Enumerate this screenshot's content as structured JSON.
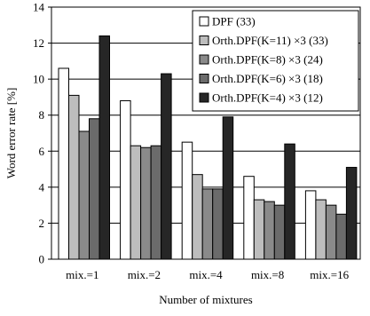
{
  "chart_data": {
    "type": "bar",
    "xlabel": "Number of mixtures",
    "ylabel": "Word error rate [%]",
    "ylim": [
      0,
      14
    ],
    "yticks": [
      0,
      2,
      4,
      6,
      8,
      10,
      12,
      14
    ],
    "grid": "horizontal",
    "legend_position": "top-right",
    "categories": [
      "mix.=1",
      "mix.=2",
      "mix.=4",
      "mix.=8",
      "mix.=16"
    ],
    "series": [
      {
        "name": "DPF (33)",
        "color": "#ffffff",
        "values": [
          10.6,
          8.8,
          6.5,
          4.6,
          3.8
        ]
      },
      {
        "name": "Orth.DPF(K=11) ×3 (33)",
        "color": "#bdbdbd",
        "values": [
          9.1,
          6.3,
          4.7,
          3.3,
          3.3
        ]
      },
      {
        "name": "Orth.DPF(K=8) ×3 (24)",
        "color": "#8a8a8a",
        "values": [
          7.1,
          6.2,
          3.9,
          3.2,
          3.0
        ]
      },
      {
        "name": "Orth.DPF(K=6) ×3 (18)",
        "color": "#6b6b6b",
        "values": [
          7.8,
          6.3,
          3.9,
          3.0,
          2.5
        ]
      },
      {
        "name": "Orth.DPF(K=4) ×3 (12)",
        "color": "#262626",
        "values": [
          12.4,
          10.3,
          7.9,
          6.4,
          5.1
        ]
      }
    ]
  }
}
